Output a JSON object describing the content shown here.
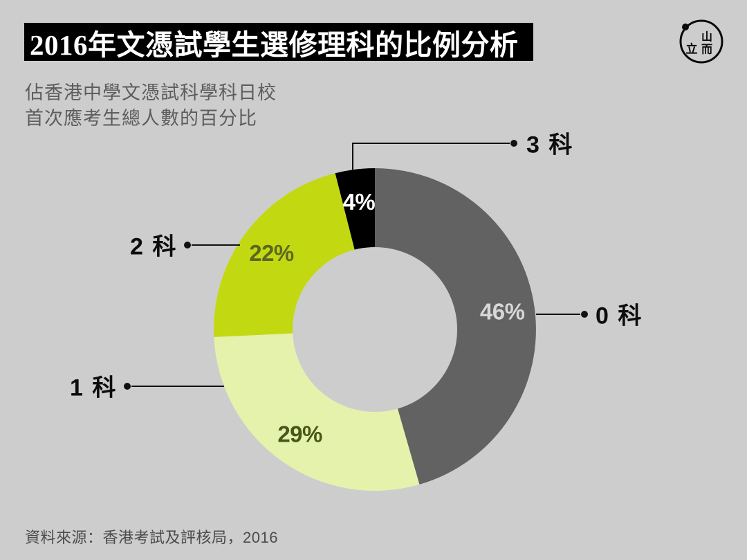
{
  "header": {
    "title": "2016年文憑試學生選修理科的比例分析"
  },
  "subtitle": {
    "line1": "佔香港中學文憑試科學科日校",
    "line2": "首次應考生總人數的百分比"
  },
  "source": "資料來源：香港考試及評核局，2016",
  "logo": {
    "glyph_left": "立",
    "glyph_top_right": "山",
    "glyph_bottom_right": "而"
  },
  "colors": {
    "background": "#cdcdcd",
    "title_bar": "#000000",
    "title_text": "#ffffff",
    "subtitle_text": "#5d5d5d",
    "leader_line": "#111111",
    "callout_text": "#0d0d0d"
  },
  "chart_data": {
    "type": "pie",
    "variant": "donut",
    "title": "2016年文憑試學生選修理科的比例分析",
    "subtitle": "佔香港中學文憑試科學科日校首次應考生總人數的百分比",
    "source": "資料來源：香港考試及評核局，2016",
    "direction": "clockwise",
    "start_angle_deg_from_top": 0,
    "legend_position": "callouts",
    "slices": [
      {
        "label": "0 科",
        "value": 46,
        "pct_label": "46%",
        "color": "#626262",
        "pct_label_color": "#d8d8d8"
      },
      {
        "label": "1 科",
        "value": 29,
        "pct_label": "29%",
        "color": "#e5f2ab",
        "pct_label_color": "#47561a"
      },
      {
        "label": "2 科",
        "value": 22,
        "pct_label": "22%",
        "color": "#c2d912",
        "pct_label_color": "#5d671f"
      },
      {
        "label": "3 科",
        "value": 4,
        "pct_label": "4%",
        "color": "#000000",
        "pct_label_color": "#ffffff"
      }
    ]
  }
}
